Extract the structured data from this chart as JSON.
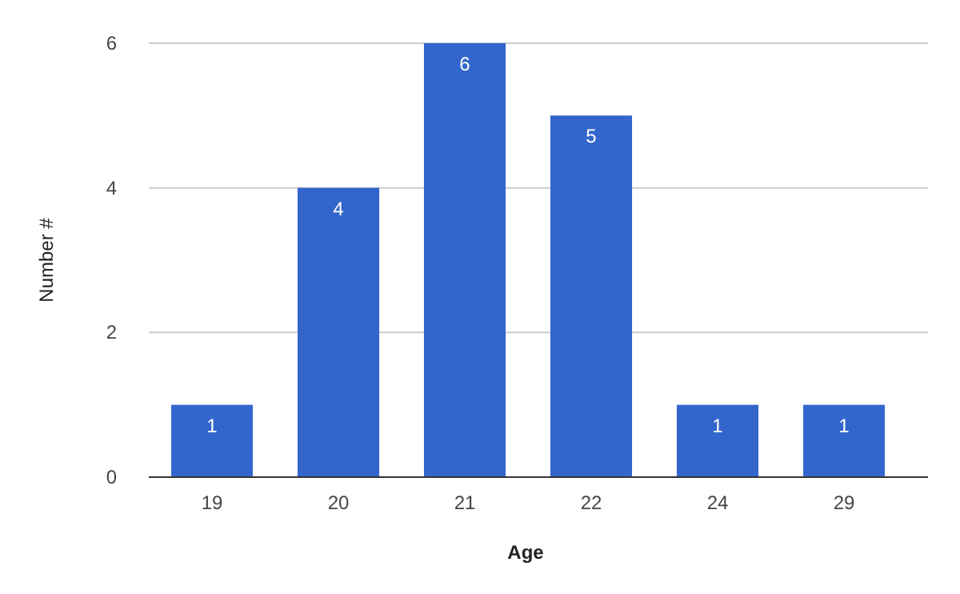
{
  "chart_data": {
    "type": "bar",
    "xlabel": "Age",
    "ylabel": "Number #",
    "categories": [
      "19",
      "20",
      "21",
      "22",
      "24",
      "29"
    ],
    "values": [
      1,
      4,
      6,
      5,
      1,
      1
    ],
    "color": "#3366cc",
    "ylim": [
      0,
      6
    ],
    "yticks": [
      0,
      2,
      4,
      6
    ],
    "grid": "y",
    "data_labels": true
  }
}
